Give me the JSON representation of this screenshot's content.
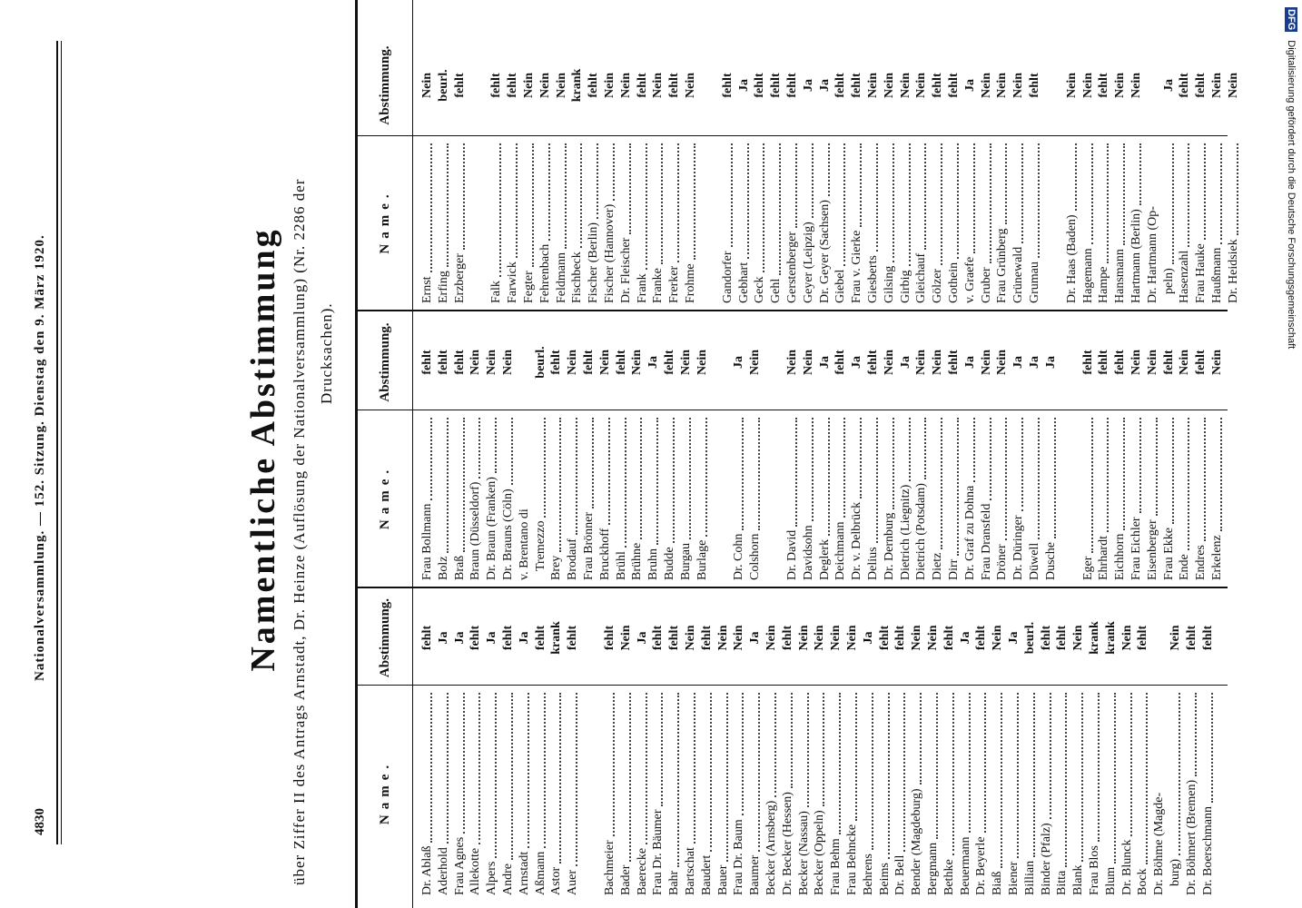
{
  "header": {
    "page_number": "4830",
    "running_title": "Nationalversammlung. — 152. Sitzung. Dienstag den 9. März 1920."
  },
  "title": "Namentliche Abstimmung",
  "subtitle": [
    "über Ziffer II des Antrags Arnstadt, Dr. Heinze (Auflösung der Nationalversammlung) (Nr. 2286 der",
    "Drucksachen)."
  ],
  "table": {
    "headers": [
      "Name.",
      "Abstimmung."
    ],
    "columns": [
      [
        [
          {
            "name": "Dr. Ablaß",
            "vote": "fehlt"
          },
          {
            "name": "Aderhold",
            "vote": "Ja"
          },
          {
            "name": "Frau Agnes",
            "vote": "Ja"
          },
          {
            "name": "Allekotte",
            "vote": "fehlt"
          },
          {
            "name": "Alpers",
            "vote": "Ja"
          },
          {
            "name": "Andre",
            "vote": "fehlt"
          },
          {
            "name": "Arnstadt",
            "vote": "Ja"
          },
          {
            "name": "Aßmann",
            "vote": "fehlt"
          },
          {
            "name": "Astor",
            "vote": "krank"
          },
          {
            "name": "Auer",
            "vote": "fehlt"
          }
        ],
        [
          {
            "name": "Bachmeier",
            "vote": "fehlt"
          },
          {
            "name": "Bader",
            "vote": "Nein"
          },
          {
            "name": "Baerecke",
            "vote": "Ja"
          },
          {
            "name": "Frau Dr. Bäumer",
            "vote": "fehlt"
          },
          {
            "name": "Bahr",
            "vote": "fehlt"
          },
          {
            "name": "Bartschat",
            "vote": "Nein"
          },
          {
            "name": "Baudert",
            "vote": "fehlt"
          },
          {
            "name": "Bauer",
            "vote": "Nein"
          },
          {
            "name": "Frau Dr. Baum",
            "vote": "Nein"
          },
          {
            "name": "Baumer",
            "vote": "Ja"
          },
          {
            "name": "Becker (Arnsberg)",
            "vote": "Nein"
          },
          {
            "name": "Dr. Becker (Hessen)",
            "vote": "fehlt"
          },
          {
            "name": "Becker (Nassau)",
            "vote": "Nein"
          },
          {
            "name": "Becker (Oppeln)",
            "vote": "Nein"
          },
          {
            "name": "Frau Behm",
            "vote": "Nein"
          },
          {
            "name": "Frau Behncke",
            "vote": "Nein"
          },
          {
            "name": "Behrens",
            "vote": "Ja"
          },
          {
            "name": "Beims",
            "vote": "fehlt"
          },
          {
            "name": "Dr. Bell",
            "vote": "fehlt"
          },
          {
            "name": "Bender (Magdeburg)",
            "vote": "Nein"
          },
          {
            "name": "Bergmann",
            "vote": "Nein"
          },
          {
            "name": "Bethke",
            "vote": "fehlt"
          },
          {
            "name": "Beuermann",
            "vote": "Ja"
          },
          {
            "name": "Dr. Beyerle",
            "vote": "fehlt"
          },
          {
            "name": "Biaß",
            "vote": "Nein"
          },
          {
            "name": "Biener",
            "vote": "Ja"
          },
          {
            "name": "Billian",
            "vote": "beurl."
          },
          {
            "name": "Binder (Pfalz)",
            "vote": "fehlt"
          },
          {
            "name": "Bitta",
            "vote": "fehlt"
          },
          {
            "name": "Blank",
            "vote": "Nein"
          },
          {
            "name": "Frau Blos",
            "vote": "krank"
          },
          {
            "name": "Blum",
            "vote": "krank"
          },
          {
            "name": "Dr. Blunck",
            "vote": "Nein"
          },
          {
            "name": "Bock",
            "vote": "fehlt"
          },
          {
            "name": "Dr. Böhme (Magde-",
            "name_cont": "burg)",
            "vote": "Nein"
          },
          {
            "name": "Dr. Böhmert (Bremen)",
            "vote": "fehlt"
          },
          {
            "name": "Dr. Boerschmann",
            "vote": "fehlt"
          }
        ]
      ],
      [
        [
          {
            "name": "Frau Bollmann",
            "vote": "fehlt"
          },
          {
            "name": "Bolz",
            "vote": "fehlt"
          },
          {
            "name": "Braß",
            "vote": "fehlt"
          },
          {
            "name": "Braun (Düsseldorf)",
            "vote": "Nein"
          },
          {
            "name": "Dr. Braun (Franken)",
            "vote": "Nein"
          },
          {
            "name": "Dr. Brauns (Cöln)",
            "vote": "Nein"
          },
          {
            "name": "v. Brentano di",
            "name_cont": "Tremezzo",
            "vote": "beurl."
          },
          {
            "name": "Brey",
            "vote": "fehlt"
          },
          {
            "name": "Brodauf",
            "vote": "Nein"
          },
          {
            "name": "Frau Brönner",
            "vote": "fehlt"
          },
          {
            "name": "Bruckhoff",
            "vote": "Nein"
          },
          {
            "name": "Brühl",
            "vote": "fehlt"
          },
          {
            "name": "Brühne",
            "vote": "Nein"
          },
          {
            "name": "Bruhn",
            "vote": "Ja"
          },
          {
            "name": "Budde",
            "vote": "fehlt"
          },
          {
            "name": "Burgau",
            "vote": "Nein"
          },
          {
            "name": "Burlage",
            "vote": "Nein"
          }
        ],
        [
          {
            "name": "Dr. Cohn",
            "vote": "Ja"
          },
          {
            "name": "Colshorn",
            "vote": "Nein"
          }
        ],
        [
          {
            "name": "Dr. David",
            "vote": "Nein"
          },
          {
            "name": "Davidsohn",
            "vote": "Nein"
          },
          {
            "name": "Deglerk",
            "vote": "Ja"
          },
          {
            "name": "Deichmann",
            "vote": "fehlt"
          },
          {
            "name": "Dr. v. Delbrück",
            "vote": "Ja"
          },
          {
            "name": "Delius",
            "vote": "fehlt"
          },
          {
            "name": "Dr. Dernburg",
            "vote": "Nein"
          },
          {
            "name": "Dietrich (Liegnitz)",
            "vote": "Ja"
          },
          {
            "name": "Dietrich (Potsdam)",
            "vote": "Nein"
          },
          {
            "name": "Dietz",
            "vote": "Nein"
          },
          {
            "name": "Dirr",
            "vote": "fehlt"
          },
          {
            "name": "Dr. Graf zu Dohna",
            "vote": "Ja"
          },
          {
            "name": "Frau Dransfeld",
            "vote": "Nein"
          },
          {
            "name": "Dröner",
            "vote": "Nein"
          },
          {
            "name": "Dr. Düringer",
            "vote": "Ja"
          },
          {
            "name": "Düwell",
            "vote": "Ja"
          },
          {
            "name": "Dusche",
            "vote": "Ja"
          }
        ],
        [
          {
            "name": "Eger",
            "vote": "fehlt"
          },
          {
            "name": "Ehrhardt",
            "vote": "fehlt"
          },
          {
            "name": "Eichhorn",
            "vote": "fehlt"
          },
          {
            "name": "Frau Eichler",
            "vote": "Nein"
          },
          {
            "name": "Eisenberger",
            "vote": "Nein"
          },
          {
            "name": "Frau Ekke",
            "vote": "fehlt"
          },
          {
            "name": "Ende",
            "vote": "Nein"
          },
          {
            "name": "Endres",
            "vote": "fehlt"
          },
          {
            "name": "Erkelenz",
            "vote": "Nein"
          }
        ]
      ],
      [
        [
          {
            "name": "Ernst",
            "vote": "Nein"
          },
          {
            "name": "Erfing",
            "vote": "beurl."
          },
          {
            "name": "Erzberger",
            "vote": "fehlt"
          }
        ],
        [
          {
            "name": "Falk",
            "vote": "fehlt"
          },
          {
            "name": "Farwick",
            "vote": "fehlt"
          },
          {
            "name": "Fegter",
            "vote": "Nein"
          },
          {
            "name": "Fehrenbach",
            "vote": "Nein"
          },
          {
            "name": "Feldmann",
            "vote": "Nein"
          },
          {
            "name": "Fischbeck",
            "vote": "krank"
          },
          {
            "name": "Fischer (Berlin)",
            "vote": "fehlt"
          },
          {
            "name": "Fischer (Hannover)",
            "vote": "Nein"
          },
          {
            "name": "Dr. Fleischer",
            "vote": "Nein"
          },
          {
            "name": "Frank",
            "vote": "fehlt"
          },
          {
            "name": "Franke",
            "vote": "Nein"
          },
          {
            "name": "Frerker",
            "vote": "fehlt"
          },
          {
            "name": "Frohme",
            "vote": "Nein"
          }
        ],
        [
          {
            "name": "Gandorfer",
            "vote": "fehlt"
          },
          {
            "name": "Gebhart",
            "vote": "Ja"
          },
          {
            "name": "Geck",
            "vote": "fehlt"
          },
          {
            "name": "Gehl",
            "vote": "fehlt"
          },
          {
            "name": "Gerstenberger",
            "vote": "fehlt"
          },
          {
            "name": "Geyer (Leipzig)",
            "vote": "Ja"
          },
          {
            "name": "Dr. Geyer (Sachsen)",
            "vote": "Ja"
          },
          {
            "name": "Giebel",
            "vote": "fehlt"
          },
          {
            "name": "Frau v. Gierke",
            "vote": "fehlt"
          },
          {
            "name": "Giesberts",
            "vote": "Nein"
          },
          {
            "name": "Gilsing",
            "vote": "Nein"
          },
          {
            "name": "Girbig",
            "vote": "Nein"
          },
          {
            "name": "Gleichauf",
            "vote": "Nein"
          },
          {
            "name": "Gölzer",
            "vote": "fehlt"
          },
          {
            "name": "Gothein",
            "vote": "fehlt"
          },
          {
            "name": "v. Graefe",
            "vote": "Ja"
          },
          {
            "name": "Gruber",
            "vote": "Nein"
          },
          {
            "name": "Frau Grünberg",
            "vote": "Nein"
          },
          {
            "name": "Grünewald",
            "vote": "Nein"
          },
          {
            "name": "Grumau",
            "vote": "fehlt"
          }
        ],
        [
          {
            "name": "Dr. Haas (Baden)",
            "vote": "Nein"
          },
          {
            "name": "Hagemann",
            "vote": "Nein"
          },
          {
            "name": "Hampe",
            "vote": "fehlt"
          },
          {
            "name": "Hansmann",
            "vote": "Nein"
          },
          {
            "name": "Hartmann (Berlin)",
            "vote": "Nein"
          },
          {
            "name": "Dr. Hartmann (Op-",
            "name_cont": "peln)",
            "vote": "Ja"
          },
          {
            "name": "Hasenzahl",
            "vote": "fehlt"
          },
          {
            "name": "Frau Hauke",
            "vote": "fehlt"
          },
          {
            "name": "Haußmann",
            "vote": "Nein"
          },
          {
            "name": "Dr. Heidsiek",
            "vote": "Nein"
          }
        ]
      ]
    ]
  },
  "sidebar": {
    "logo": "DFG",
    "text": "Digitalisierung gefördert durch die Deutsche Forschungsgemeinschaft"
  }
}
